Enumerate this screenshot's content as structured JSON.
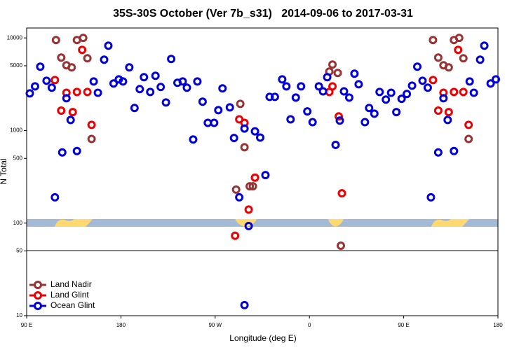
{
  "chart_data": {
    "type": "scatter",
    "title": "35S-30S October (Ver 7b_s31)   2014-09-06 to 2017-03-31",
    "x_label": "Longitude (deg E)",
    "y_label": "N Total",
    "y_log": true,
    "legend": "lower left",
    "xlim": [
      90,
      540
    ],
    "ylim": [
      10,
      12800
    ],
    "xticks": [
      {
        "value": 90,
        "label": "90 E"
      },
      180,
      {
        "value": 270,
        "label": "90 W"
      },
      {
        "value": 360,
        "label": "0"
      },
      {
        "value": 450,
        "label": "90 E"
      },
      {
        "value": 540,
        "label": "180"
      }
    ],
    "yticks": [
      10,
      50,
      100,
      500,
      1000,
      5000,
      10000
    ],
    "series": [
      {
        "name": "Land Nadir",
        "color": "#993333",
        "x": [
          118,
          123,
          128,
          133,
          138,
          144,
          148,
          152,
          290,
          294,
          298,
          303,
          306,
          379,
          382,
          387,
          390,
          478,
          483,
          488,
          493,
          498,
          503,
          507,
          512
        ],
        "values": [
          9490,
          6140,
          5070,
          4810,
          9490,
          10000,
          6030,
          810,
          230,
          1940,
          660,
          250,
          250,
          4330,
          5160,
          4180,
          57,
          9490,
          6140,
          5070,
          4810,
          9490,
          10000,
          6030,
          810
        ]
      },
      {
        "name": "Land Glint",
        "color": "#ee0000",
        "x": [
          117,
          123,
          128,
          134,
          138,
          143,
          148,
          152,
          289,
          293,
          298,
          302,
          308,
          379,
          382,
          388,
          391,
          478,
          483,
          488,
          493,
          498,
          502,
          507,
          512
        ],
        "values": [
          3510,
          1640,
          2560,
          1580,
          2610,
          7430,
          2610,
          1150,
          73,
          1320,
          1210,
          140,
          310,
          2610,
          3000,
          1420,
          210,
          3510,
          1640,
          2560,
          1580,
          2610,
          7430,
          2610,
          1150
        ]
      },
      {
        "name": "Ocean Glint",
        "color": "#0000dd",
        "x": [
          93,
          98,
          103,
          109,
          114,
          117,
          124,
          128,
          132,
          138,
          154,
          158,
          164,
          168,
          173,
          178,
          182,
          188,
          193,
          198,
          202,
          208,
          213,
          218,
          223,
          228,
          234,
          239,
          243,
          249,
          253,
          258,
          263,
          269,
          273,
          277,
          284,
          288,
          293,
          298,
          298,
          302,
          308,
          313,
          318,
          322,
          327,
          334,
          338,
          342,
          347,
          352,
          358,
          363,
          369,
          373,
          377,
          385,
          389,
          393,
          398,
          403,
          407,
          413,
          417,
          422,
          427,
          433,
          438,
          443,
          448,
          453,
          458,
          463,
          468,
          473,
          476,
          483,
          488,
          492,
          498,
          513,
          517,
          523,
          527,
          533,
          538
        ],
        "values": [
          2520,
          3000,
          4890,
          3450,
          2900,
          190,
          580,
          2230,
          1300,
          600,
          3390,
          2560,
          5820,
          8250,
          3220,
          3570,
          3390,
          4810,
          1750,
          2800,
          3770,
          2610,
          3900,
          2950,
          2010,
          5920,
          3280,
          3390,
          2900,
          800,
          3390,
          2050,
          1210,
          1210,
          1660,
          2850,
          1780,
          830,
          190,
          1050,
          13,
          93,
          980,
          840,
          330,
          2310,
          2310,
          3570,
          3000,
          1320,
          2270,
          3000,
          1610,
          1230,
          3000,
          2650,
          3770,
          700,
          1280,
          2650,
          2270,
          4110,
          3160,
          1230,
          1750,
          1520,
          2610,
          2160,
          2560,
          1580,
          2200,
          2480,
          3050,
          4890,
          3450,
          2900,
          190,
          580,
          2230,
          1300,
          600,
          3390,
          2560,
          5820,
          8250,
          3220,
          3570
        ]
      }
    ]
  }
}
